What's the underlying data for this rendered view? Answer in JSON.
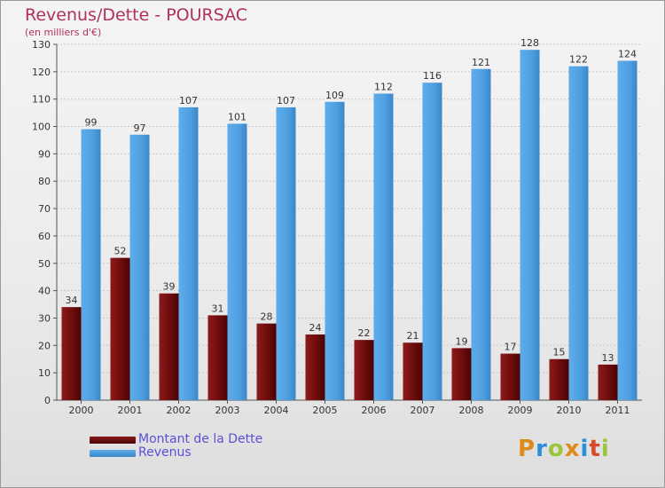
{
  "header": {
    "title": "Revenus/Dette - POURSAC",
    "subtitle": "(en milliers d'€)"
  },
  "legend": {
    "items": [
      {
        "label": "Montant de la Dette",
        "color": "#6e0c0c"
      },
      {
        "label": "Revenus",
        "color": "#4f9fe0"
      }
    ]
  },
  "logo": {
    "text": "Proxiti",
    "colors": [
      "#e08a1c",
      "#2a8fd6",
      "#9bc53d",
      "#e08a1c",
      "#2a8fd6",
      "#d64a2a",
      "#9bc53d"
    ]
  },
  "chart_data": {
    "type": "bar",
    "categories": [
      "2000",
      "2001",
      "2002",
      "2003",
      "2004",
      "2005",
      "2006",
      "2007",
      "2008",
      "2009",
      "2010",
      "2011"
    ],
    "series": [
      {
        "name": "Montant de la Dette",
        "color": "#6e0c0c",
        "values": [
          34,
          52,
          39,
          31,
          28,
          24,
          22,
          21,
          19,
          17,
          15,
          13
        ]
      },
      {
        "name": "Revenus",
        "color": "#4f9fe0",
        "values": [
          99,
          97,
          107,
          101,
          107,
          109,
          112,
          116,
          121,
          128,
          122,
          124
        ]
      }
    ],
    "ylim": [
      0,
      130
    ],
    "yticks": [
      0,
      10,
      20,
      30,
      40,
      50,
      60,
      70,
      80,
      90,
      100,
      110,
      120,
      130
    ],
    "grid": true
  }
}
